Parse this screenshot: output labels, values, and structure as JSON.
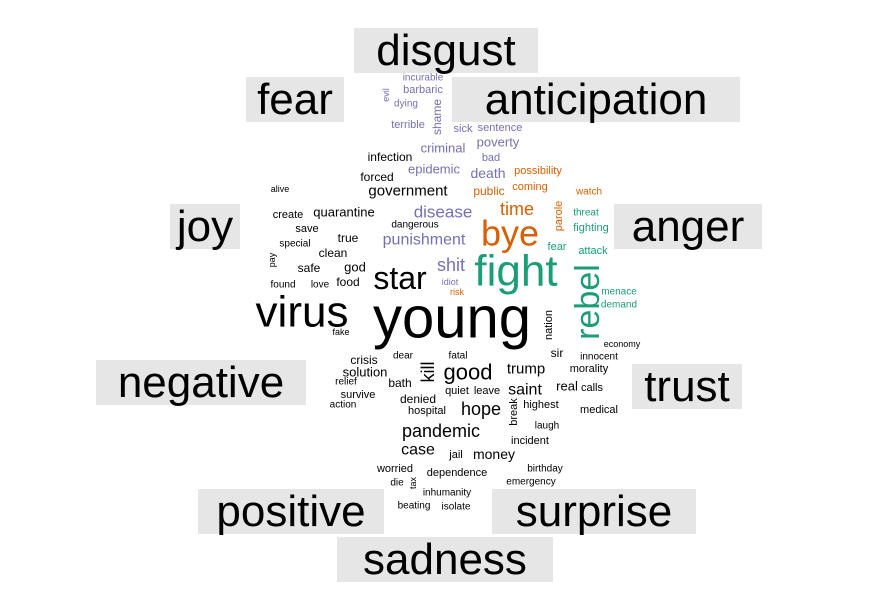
{
  "chart_data": {
    "type": "comparison_word_cloud",
    "colors": {
      "category_box": "#e6e6e6",
      "category_text": "#000000",
      "anticipation": "#d95f02",
      "anger": "#1b9e77",
      "disgust": "#7570b3",
      "neutral": "#000000"
    },
    "categories": [
      "disgust",
      "fear",
      "anticipation",
      "joy",
      "anger",
      "negative",
      "trust",
      "positive",
      "surprise",
      "sadness"
    ],
    "words": [
      {
        "text": "young",
        "group": "neutral"
      },
      {
        "text": "virus",
        "group": "neutral"
      },
      {
        "text": "star",
        "group": "neutral"
      },
      {
        "text": "fight",
        "group": "anger"
      },
      {
        "text": "bye",
        "group": "anticipation"
      },
      {
        "text": "rebel",
        "group": "anger"
      },
      {
        "text": "time",
        "group": "anticipation"
      },
      {
        "text": "disease",
        "group": "disgust"
      },
      {
        "text": "punishment",
        "group": "disgust"
      },
      {
        "text": "shit",
        "group": "disgust"
      },
      {
        "text": "government",
        "group": "neutral"
      },
      {
        "text": "quarantine",
        "group": "neutral"
      },
      {
        "text": "epidemic",
        "group": "disgust"
      },
      {
        "text": "death",
        "group": "disgust"
      },
      {
        "text": "criminal",
        "group": "disgust"
      },
      {
        "text": "poverty",
        "group": "disgust"
      },
      {
        "text": "infection",
        "group": "neutral"
      },
      {
        "text": "forced",
        "group": "neutral"
      },
      {
        "text": "public",
        "group": "anticipation"
      },
      {
        "text": "coming",
        "group": "anticipation"
      },
      {
        "text": "possibility",
        "group": "anticipation"
      },
      {
        "text": "parole",
        "group": "anticipation"
      },
      {
        "text": "watch",
        "group": "anticipation"
      },
      {
        "text": "threat",
        "group": "anger"
      },
      {
        "text": "fighting",
        "group": "anger"
      },
      {
        "text": "fear",
        "group": "anger"
      },
      {
        "text": "attack",
        "group": "anger"
      },
      {
        "text": "menace",
        "group": "anger"
      },
      {
        "text": "demand",
        "group": "anger"
      },
      {
        "text": "bad",
        "group": "disgust"
      },
      {
        "text": "sick",
        "group": "disgust"
      },
      {
        "text": "sentence",
        "group": "disgust"
      },
      {
        "text": "shame",
        "group": "disgust"
      },
      {
        "text": "terrible",
        "group": "disgust"
      },
      {
        "text": "dying",
        "group": "disgust"
      },
      {
        "text": "barbaric",
        "group": "disgust"
      },
      {
        "text": "incurable",
        "group": "disgust"
      },
      {
        "text": "evil",
        "group": "disgust"
      },
      {
        "text": "idiot",
        "group": "disgust"
      },
      {
        "text": "risk",
        "group": "anticipation"
      },
      {
        "text": "dangerous",
        "group": "neutral"
      },
      {
        "text": "true",
        "group": "neutral"
      },
      {
        "text": "clean",
        "group": "neutral"
      },
      {
        "text": "god",
        "group": "neutral"
      },
      {
        "text": "safe",
        "group": "neutral"
      },
      {
        "text": "food",
        "group": "neutral"
      },
      {
        "text": "love",
        "group": "neutral"
      },
      {
        "text": "found",
        "group": "neutral"
      },
      {
        "text": "pay",
        "group": "neutral"
      },
      {
        "text": "special",
        "group": "neutral"
      },
      {
        "text": "save",
        "group": "neutral"
      },
      {
        "text": "create",
        "group": "neutral"
      },
      {
        "text": "alive",
        "group": "neutral"
      },
      {
        "text": "fake",
        "group": "neutral"
      },
      {
        "text": "nation",
        "group": "neutral"
      },
      {
        "text": "sir",
        "group": "neutral"
      },
      {
        "text": "economy",
        "group": "neutral"
      },
      {
        "text": "innocent",
        "group": "neutral"
      },
      {
        "text": "morality",
        "group": "neutral"
      },
      {
        "text": "calls",
        "group": "neutral"
      },
      {
        "text": "real",
        "group": "neutral"
      },
      {
        "text": "medical",
        "group": "neutral"
      },
      {
        "text": "highest",
        "group": "neutral"
      },
      {
        "text": "laugh",
        "group": "neutral"
      },
      {
        "text": "incident",
        "group": "neutral"
      },
      {
        "text": "birthday",
        "group": "neutral"
      },
      {
        "text": "emergency",
        "group": "neutral"
      },
      {
        "text": "trump",
        "group": "neutral"
      },
      {
        "text": "saint",
        "group": "neutral"
      },
      {
        "text": "break",
        "group": "neutral"
      },
      {
        "text": "good",
        "group": "neutral"
      },
      {
        "text": "hope",
        "group": "neutral"
      },
      {
        "text": "leave",
        "group": "neutral"
      },
      {
        "text": "quiet",
        "group": "neutral"
      },
      {
        "text": "kill",
        "group": "neutral"
      },
      {
        "text": "fatal",
        "group": "neutral"
      },
      {
        "text": "dear",
        "group": "neutral"
      },
      {
        "text": "crisis",
        "group": "neutral"
      },
      {
        "text": "solution",
        "group": "neutral"
      },
      {
        "text": "relief",
        "group": "neutral"
      },
      {
        "text": "bath",
        "group": "neutral"
      },
      {
        "text": "survive",
        "group": "neutral"
      },
      {
        "text": "action",
        "group": "neutral"
      },
      {
        "text": "denied",
        "group": "neutral"
      },
      {
        "text": "hospital",
        "group": "neutral"
      },
      {
        "text": "pandemic",
        "group": "neutral"
      },
      {
        "text": "case",
        "group": "neutral"
      },
      {
        "text": "jail",
        "group": "neutral"
      },
      {
        "text": "money",
        "group": "neutral"
      },
      {
        "text": "worried",
        "group": "neutral"
      },
      {
        "text": "dependence",
        "group": "neutral"
      },
      {
        "text": "die",
        "group": "neutral"
      },
      {
        "text": "tax",
        "group": "neutral"
      },
      {
        "text": "inhumanity",
        "group": "neutral"
      },
      {
        "text": "beating",
        "group": "neutral"
      },
      {
        "text": "isolate",
        "group": "neutral"
      }
    ]
  }
}
